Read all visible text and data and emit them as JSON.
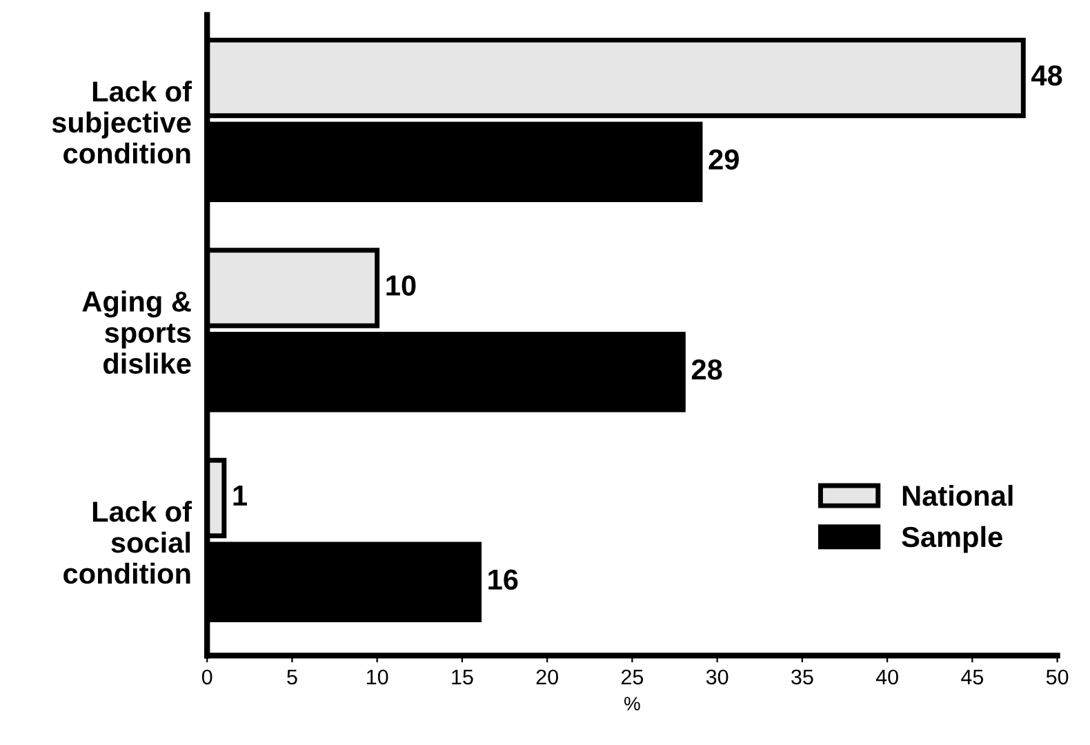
{
  "chart_data": {
    "type": "bar",
    "orientation": "horizontal",
    "xlabel": "%",
    "categories": [
      "Lack of\nsubjective\ncondition",
      "Aging &\nsports\ndislike",
      "Lack of\nsocial\ncondition"
    ],
    "series": [
      {
        "name": "National",
        "color": "#e6e6e6",
        "values": [
          48,
          10,
          1
        ]
      },
      {
        "name": "Sample",
        "color": "#000000",
        "values": [
          29,
          28,
          16
        ]
      }
    ],
    "xlim": [
      0,
      50
    ],
    "xticks": [
      0,
      5,
      10,
      15,
      20,
      25,
      30,
      35,
      40,
      45,
      50
    ],
    "data_labels": true,
    "legend": "lower right",
    "grid": false
  }
}
